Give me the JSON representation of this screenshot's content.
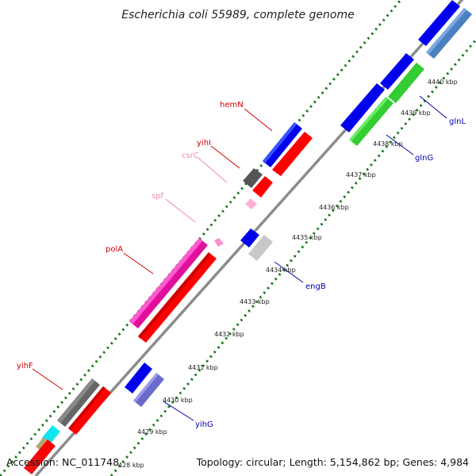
{
  "title": "Escherichia coli 55989, complete genome",
  "footer": {
    "accession": "Accession: NC_011748",
    "topology": "Topology: circular; Length: 5,154,862 bp; Genes: 4,984"
  },
  "colors": {
    "backbone": "#8c8c8c",
    "dot_ring": "#1a7a1a",
    "label_forward": "#cc0000",
    "label_reverse": "#0000aa",
    "label_rna": "#ee88aa"
  },
  "ticks": [
    {
      "label": "428 kbp"
    },
    {
      "label": "4429 kbp"
    },
    {
      "label": "4430 kbp"
    },
    {
      "label": "4431 kbp"
    },
    {
      "label": "4432 kbp"
    },
    {
      "label": "4433 kbp"
    },
    {
      "label": "4434 kbp"
    },
    {
      "label": "4435 kbp"
    },
    {
      "label": "4436 kbp"
    },
    {
      "label": "4437 kbp"
    },
    {
      "label": "4438 kbp"
    },
    {
      "label": "4439 kbp"
    },
    {
      "label": "4440 kbp"
    }
  ],
  "gene_labels": [
    {
      "name": "yihF",
      "strand": "forward"
    },
    {
      "name": "polA",
      "strand": "forward"
    },
    {
      "name": "spf",
      "strand": "rna"
    },
    {
      "name": "csrC",
      "strand": "rna"
    },
    {
      "name": "yihI",
      "strand": "forward"
    },
    {
      "name": "hemN",
      "strand": "forward"
    },
    {
      "name": "engB",
      "strand": "reverse"
    },
    {
      "name": "yihG",
      "strand": "reverse"
    },
    {
      "name": "glnG",
      "strand": "reverse"
    },
    {
      "name": "glnL",
      "strand": "reverse"
    }
  ]
}
